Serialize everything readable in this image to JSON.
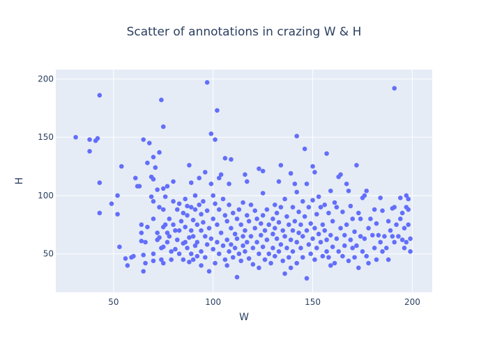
{
  "chart_data": {
    "type": "scatter",
    "title": "Scatter of annotations in crazing W & H",
    "xlabel": "W",
    "ylabel": "H",
    "xlim": [
      21,
      210
    ],
    "ylim": [
      17,
      208
    ],
    "xticks": [
      50,
      100,
      150,
      200
    ],
    "yticks": [
      50,
      100,
      150,
      200
    ],
    "grid": true,
    "marker_color": "#636efa",
    "plot_bg": "#e5ecf6",
    "series": [
      {
        "points": [
          [
            31,
            150
          ],
          [
            38,
            148
          ],
          [
            38,
            138
          ],
          [
            41,
            147
          ],
          [
            42,
            149
          ],
          [
            43,
            186
          ],
          [
            43,
            111
          ],
          [
            43,
            85
          ],
          [
            49,
            93
          ],
          [
            52,
            100
          ],
          [
            52,
            84
          ],
          [
            53,
            56
          ],
          [
            54,
            125
          ],
          [
            56,
            46
          ],
          [
            57,
            40
          ],
          [
            59,
            47
          ],
          [
            60,
            48
          ],
          [
            61,
            115
          ],
          [
            62,
            108
          ],
          [
            63,
            108
          ],
          [
            64,
            75
          ],
          [
            64,
            68
          ],
          [
            64,
            61
          ],
          [
            65,
            148
          ],
          [
            65,
            49
          ],
          [
            65,
            35
          ],
          [
            66,
            60
          ],
          [
            66,
            42
          ],
          [
            67,
            73
          ],
          [
            67,
            128
          ],
          [
            68,
            145
          ],
          [
            69,
            116
          ],
          [
            69,
            99
          ],
          [
            70,
            133
          ],
          [
            70,
            114
          ],
          [
            70,
            95
          ],
          [
            70,
            80
          ],
          [
            70,
            50
          ],
          [
            70,
            44
          ],
          [
            71,
            124
          ],
          [
            72,
            105
          ],
          [
            72,
            68
          ],
          [
            72,
            62
          ],
          [
            73,
            137
          ],
          [
            73,
            90
          ],
          [
            73,
            64
          ],
          [
            74,
            182
          ],
          [
            74,
            45
          ],
          [
            74,
            55
          ],
          [
            75,
            159
          ],
          [
            75,
            106
          ],
          [
            75,
            88
          ],
          [
            75,
            73
          ],
          [
            75,
            56
          ],
          [
            75,
            42
          ],
          [
            76,
            99
          ],
          [
            76,
            75
          ],
          [
            77,
            108
          ],
          [
            77,
            68
          ],
          [
            77,
            60
          ],
          [
            78,
            80
          ],
          [
            78,
            65
          ],
          [
            79,
            52
          ],
          [
            79,
            45
          ],
          [
            80,
            112
          ],
          [
            80,
            95
          ],
          [
            80,
            75
          ],
          [
            81,
            70
          ],
          [
            81,
            54
          ],
          [
            82,
            88
          ],
          [
            82,
            62
          ],
          [
            83,
            93
          ],
          [
            83,
            70
          ],
          [
            83,
            50
          ],
          [
            84,
            78
          ],
          [
            85,
            85
          ],
          [
            85,
            59
          ],
          [
            85,
            45
          ],
          [
            86,
            97
          ],
          [
            86,
            73
          ],
          [
            86,
            60
          ],
          [
            87,
            91
          ],
          [
            87,
            83
          ],
          [
            87,
            55
          ],
          [
            88,
            126
          ],
          [
            88,
            64
          ],
          [
            88,
            43
          ],
          [
            89,
            111
          ],
          [
            89,
            90
          ],
          [
            89,
            70
          ],
          [
            89,
            50
          ],
          [
            90,
            79
          ],
          [
            90,
            65
          ],
          [
            90,
            45
          ],
          [
            91,
            100
          ],
          [
            91,
            88
          ],
          [
            91,
            57
          ],
          [
            92,
            75
          ],
          [
            92,
            60
          ],
          [
            92,
            48
          ],
          [
            93,
            115
          ],
          [
            93,
            92
          ],
          [
            94,
            84
          ],
          [
            94,
            70
          ],
          [
            94,
            52
          ],
          [
            94,
            40
          ],
          [
            95,
            95
          ],
          [
            95,
            77
          ],
          [
            96,
            65
          ],
          [
            96,
            47
          ],
          [
            96,
            120
          ],
          [
            97,
            197
          ],
          [
            97,
            87
          ],
          [
            97,
            58
          ],
          [
            98,
            72
          ],
          [
            98,
            35
          ],
          [
            99,
            153
          ],
          [
            99,
            110
          ],
          [
            99,
            63
          ],
          [
            100,
            100
          ],
          [
            100,
            80
          ],
          [
            100,
            54
          ],
          [
            101,
            148
          ],
          [
            101,
            93
          ],
          [
            101,
            42
          ],
          [
            102,
            173
          ],
          [
            102,
            75
          ],
          [
            102,
            60
          ],
          [
            103,
            115
          ],
          [
            103,
            88
          ],
          [
            103,
            50
          ],
          [
            104,
            118
          ],
          [
            104,
            68
          ],
          [
            105,
            97
          ],
          [
            105,
            57
          ],
          [
            106,
            132
          ],
          [
            106,
            83
          ],
          [
            106,
            45
          ],
          [
            107,
            78
          ],
          [
            107,
            62
          ],
          [
            107,
            40
          ],
          [
            108,
            110
          ],
          [
            108,
            92
          ],
          [
            108,
            52
          ],
          [
            109,
            131
          ],
          [
            109,
            72
          ],
          [
            109,
            58
          ],
          [
            110,
            85
          ],
          [
            110,
            47
          ],
          [
            111,
            67
          ],
          [
            111,
            55
          ],
          [
            112,
            80
          ],
          [
            112,
            63
          ],
          [
            112,
            30
          ],
          [
            113,
            88
          ],
          [
            113,
            50
          ],
          [
            114,
            75
          ],
          [
            114,
            44
          ],
          [
            115,
            94
          ],
          [
            115,
            65
          ],
          [
            115,
            57
          ],
          [
            116,
            118
          ],
          [
            116,
            70
          ],
          [
            116,
            52
          ],
          [
            117,
            112
          ],
          [
            117,
            83
          ],
          [
            117,
            60
          ],
          [
            118,
            78
          ],
          [
            118,
            46
          ],
          [
            119,
            92
          ],
          [
            119,
            65
          ],
          [
            120,
            55
          ],
          [
            120,
            41
          ],
          [
            121,
            72
          ],
          [
            121,
            87
          ],
          [
            122,
            80
          ],
          [
            122,
            60
          ],
          [
            123,
            123
          ],
          [
            123,
            50
          ],
          [
            123,
            38
          ],
          [
            124,
            76
          ],
          [
            124,
            66
          ],
          [
            125,
            102
          ],
          [
            125,
            121
          ],
          [
            125,
            83
          ],
          [
            125,
            56
          ],
          [
            126,
            70
          ],
          [
            126,
            45
          ],
          [
            127,
            88
          ],
          [
            127,
            62
          ],
          [
            128,
            75
          ],
          [
            128,
            50
          ],
          [
            129,
            42
          ],
          [
            130,
            80
          ],
          [
            130,
            67
          ],
          [
            130,
            55
          ],
          [
            131,
            92
          ],
          [
            131,
            72
          ],
          [
            131,
            48
          ],
          [
            132,
            85
          ],
          [
            132,
            63
          ],
          [
            133,
            112
          ],
          [
            133,
            77
          ],
          [
            133,
            52
          ],
          [
            134,
            126
          ],
          [
            134,
            90
          ],
          [
            134,
            58
          ],
          [
            135,
            70
          ],
          [
            135,
            44
          ],
          [
            136,
            97
          ],
          [
            136,
            65
          ],
          [
            136,
            33
          ],
          [
            137,
            82
          ],
          [
            137,
            55
          ],
          [
            138,
            75
          ],
          [
            138,
            47
          ],
          [
            139,
            119
          ],
          [
            139,
            62
          ],
          [
            139,
            38
          ],
          [
            140,
            90
          ],
          [
            140,
            70
          ],
          [
            140,
            52
          ],
          [
            141,
            110
          ],
          [
            141,
            78
          ],
          [
            142,
            151
          ],
          [
            142,
            103
          ],
          [
            142,
            60
          ],
          [
            142,
            42
          ],
          [
            143,
            86
          ],
          [
            143,
            68
          ],
          [
            144,
            75
          ],
          [
            144,
            55
          ],
          [
            145,
            95
          ],
          [
            145,
            65
          ],
          [
            145,
            47
          ],
          [
            146,
            140
          ],
          [
            146,
            82
          ],
          [
            147,
            110
          ],
          [
            147,
            70
          ],
          [
            147,
            29
          ],
          [
            148,
            90
          ],
          [
            148,
            58
          ],
          [
            149,
            76
          ],
          [
            149,
            50
          ],
          [
            150,
            125
          ],
          [
            150,
            96
          ],
          [
            150,
            63
          ],
          [
            151,
            120
          ],
          [
            151,
            72
          ],
          [
            151,
            45
          ],
          [
            152,
            84
          ],
          [
            152,
            55
          ],
          [
            153,
            99
          ],
          [
            153,
            67
          ],
          [
            154,
            90
          ],
          [
            154,
            60
          ],
          [
            155,
            75
          ],
          [
            155,
            48
          ],
          [
            156,
            92
          ],
          [
            156,
            70
          ],
          [
            157,
            136
          ],
          [
            157,
            62
          ],
          [
            157,
            52
          ],
          [
            158,
            85
          ],
          [
            158,
            47
          ],
          [
            159,
            104
          ],
          [
            159,
            66
          ],
          [
            159,
            40
          ],
          [
            160,
            78
          ],
          [
            160,
            56
          ],
          [
            161,
            94
          ],
          [
            161,
            42
          ],
          [
            162,
            90
          ],
          [
            162,
            63
          ],
          [
            163,
            116
          ],
          [
            163,
            52
          ],
          [
            164,
            118
          ],
          [
            164,
            72
          ],
          [
            165,
            86
          ],
          [
            165,
            48
          ],
          [
            166,
            66
          ],
          [
            166,
            57
          ],
          [
            167,
            110
          ],
          [
            167,
            75
          ],
          [
            168,
            104
          ],
          [
            168,
            44
          ],
          [
            169,
            91
          ],
          [
            169,
            62
          ],
          [
            170,
            80
          ],
          [
            170,
            55
          ],
          [
            171,
            69
          ],
          [
            171,
            47
          ],
          [
            172,
            126
          ],
          [
            172,
            57
          ],
          [
            173,
            85
          ],
          [
            173,
            38
          ],
          [
            174,
            80
          ],
          [
            174,
            65
          ],
          [
            175,
            98
          ],
          [
            175,
            52
          ],
          [
            176,
            100
          ],
          [
            176,
            63
          ],
          [
            177,
            104
          ],
          [
            177,
            48
          ],
          [
            178,
            72
          ],
          [
            178,
            42
          ],
          [
            179,
            80
          ],
          [
            180,
            66
          ],
          [
            181,
            88
          ],
          [
            181,
            55
          ],
          [
            182,
            76
          ],
          [
            182,
            45
          ],
          [
            183,
            66
          ],
          [
            184,
            98
          ],
          [
            184,
            60
          ],
          [
            185,
            87
          ],
          [
            185,
            52
          ],
          [
            186,
            65
          ],
          [
            187,
            55
          ],
          [
            188,
            78
          ],
          [
            188,
            45
          ],
          [
            189,
            70
          ],
          [
            190,
            89
          ],
          [
            190,
            65
          ],
          [
            191,
            192
          ],
          [
            191,
            90
          ],
          [
            191,
            60
          ],
          [
            192,
            75
          ],
          [
            193,
            65
          ],
          [
            194,
            98
          ],
          [
            194,
            80
          ],
          [
            195,
            85
          ],
          [
            195,
            62
          ],
          [
            196,
            72
          ],
          [
            196,
            55
          ],
          [
            197,
            100
          ],
          [
            197,
            90
          ],
          [
            197,
            60
          ],
          [
            198,
            97
          ],
          [
            198,
            88
          ],
          [
            198,
            75
          ],
          [
            199,
            63
          ],
          [
            199,
            52
          ]
        ]
      }
    ]
  }
}
